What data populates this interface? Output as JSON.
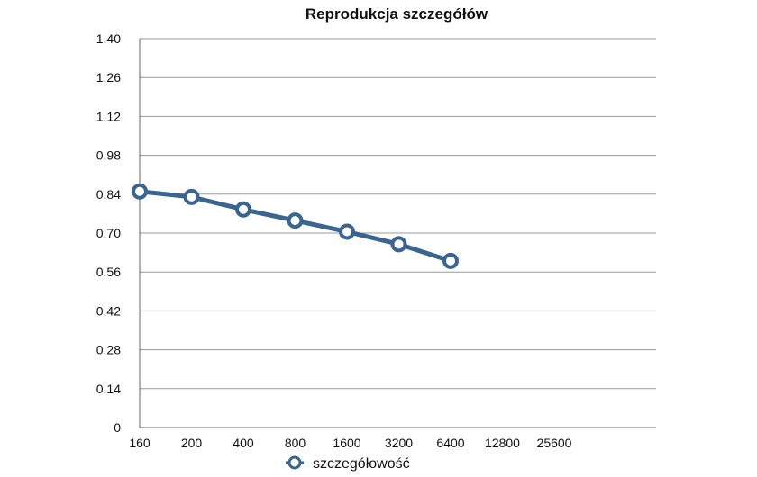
{
  "chart_data": {
    "type": "line",
    "title": "Reprodukcja szczegółów",
    "xlabel": "",
    "ylabel": "",
    "categories": [
      "160",
      "200",
      "400",
      "800",
      "1600",
      "3200",
      "6400",
      "12800",
      "25600"
    ],
    "ylim": [
      0,
      1.4
    ],
    "y_ticks": [
      "0",
      "0.14",
      "0.28",
      "0.42",
      "0.56",
      "0.70",
      "0.84",
      "0.98",
      "1.12",
      "1.26",
      "1.40"
    ],
    "grid": true,
    "legend_position": "bottom",
    "series": [
      {
        "name": "szczegółowość",
        "color": "#3b6591",
        "values": [
          0.85,
          0.83,
          0.785,
          0.745,
          0.705,
          0.66,
          0.6,
          null,
          null
        ]
      }
    ]
  }
}
